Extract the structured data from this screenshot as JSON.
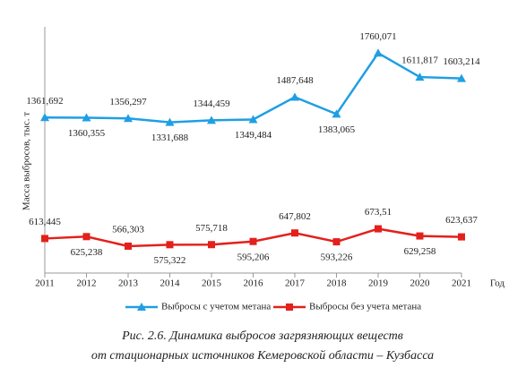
{
  "chart_data": {
    "type": "line",
    "ylabel": "Масса выбросов, тыс. т",
    "xlabel": "Год",
    "x": [
      2011,
      2012,
      2013,
      2014,
      2015,
      2016,
      2017,
      2018,
      2019,
      2020,
      2021
    ],
    "xlim": [
      2011,
      2021
    ],
    "xticks": [
      2011,
      2012,
      2013,
      2014,
      2015,
      2016,
      2017,
      2018,
      2019,
      2020,
      2021
    ],
    "ylim": [
      400,
      1900
    ],
    "series": [
      {
        "name": "Выбросы с учетом метана",
        "color": "#1f9fe3",
        "marker": "triangle",
        "values": [
          1361.692,
          1360.355,
          1356.297,
          1331.688,
          1344.459,
          1349.484,
          1487.648,
          1383.065,
          1760.071,
          1611.817,
          1603.214
        ],
        "value_labels": [
          "1361,692",
          "1360,355",
          "1356,297",
          "1331,688",
          "1344,459",
          "1349,484",
          "1487,648",
          "1383,065",
          "1760,071",
          "1611,817",
          "1603,214"
        ]
      },
      {
        "name": "Выбросы без учета метана",
        "color": "#e3201b",
        "marker": "square",
        "values": [
          613.445,
          625.238,
          566.303,
          575.322,
          575.718,
          595.206,
          647.802,
          593.226,
          673.51,
          629.258,
          623.637
        ],
        "value_labels": [
          "613,445",
          "625,238",
          "566,303",
          "575,322",
          "575,718",
          "595,206",
          "647,802",
          "593,226",
          "673,51",
          "629,258",
          "623,637"
        ]
      }
    ],
    "legend": "bottom",
    "caption": [
      "Рис. 2.6. Динамика выбросов загрязняющих веществ",
      "от стационарных источников Кемеровской области – Кузбасса"
    ]
  }
}
